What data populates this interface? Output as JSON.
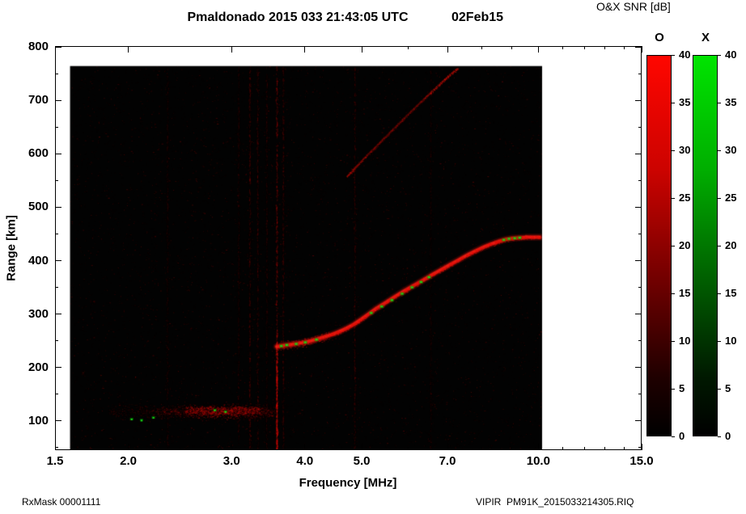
{
  "header": {
    "title": "Pmaldonado 2015 033 21:43:05 UTC",
    "date": "02Feb15",
    "snr_label": "O&X SNR [dB]"
  },
  "axes": {
    "x_label": "Frequency [MHz]",
    "y_label": "Range [km]"
  },
  "footer": {
    "left": "RxMask 00001111",
    "right": "VIPIR  PM91K_2015033214305.RIQ"
  },
  "chart_data": {
    "type": "heatmap",
    "title": "Pmaldonado 2015 033 21:43:05 UTC",
    "subtitle": "02Feb15",
    "xlabel": "Frequency [MHz]",
    "ylabel": "Range [km]",
    "colorbar_title": "O&X SNR [dB]",
    "x_scale": "log",
    "xlim": [
      1.5,
      15.0
    ],
    "ylim": [
      45,
      802
    ],
    "background_color": "#000000",
    "o_mode_color": "#ff0000",
    "x_mode_color": "#00e000",
    "x_ticks": {
      "values": [
        1.5,
        2.0,
        3.0,
        4.0,
        5.0,
        7.0,
        10.0,
        15.0
      ],
      "labels": [
        "1.5",
        "2.0",
        "3.0",
        "4.0",
        "5.0",
        "7.0",
        "10.0",
        "15.0"
      ],
      "minor": [
        6,
        8,
        9,
        11,
        12,
        13,
        14
      ]
    },
    "y_ticks": {
      "values": [
        100,
        200,
        300,
        400,
        500,
        600,
        700,
        800
      ],
      "labels": [
        "100",
        "200",
        "300",
        "400",
        "500",
        "600",
        "700",
        "800"
      ],
      "minor": [
        50,
        150,
        250,
        350,
        450,
        550,
        650,
        750
      ]
    },
    "data_extent": {
      "f_min": 1.59,
      "f_max": 10.15,
      "r_min": 45,
      "r_max": 765
    },
    "colorbars": [
      {
        "mode": "O",
        "label": "O",
        "min": 0,
        "max": 40,
        "tick_step": 5,
        "tick_labels": [
          "0",
          "5",
          "10",
          "15",
          "20",
          "25",
          "30",
          "35",
          "40"
        ],
        "gradient": [
          [
            "0%",
            "#ff0600"
          ],
          [
            "30%",
            "#cc0300"
          ],
          [
            "60%",
            "#6e0000"
          ],
          [
            "85%",
            "#1e0000"
          ],
          [
            "100%",
            "#000000"
          ]
        ]
      },
      {
        "mode": "X",
        "label": "X",
        "min": 0,
        "max": 40,
        "tick_step": 5,
        "tick_labels": [
          "0",
          "5",
          "10",
          "15",
          "20",
          "25",
          "30",
          "35",
          "40"
        ],
        "gradient": [
          [
            "0%",
            "#00e400"
          ],
          [
            "30%",
            "#00ae00"
          ],
          [
            "60%",
            "#005c00"
          ],
          [
            "85%",
            "#001800"
          ],
          [
            "100%",
            "#000000"
          ]
        ]
      }
    ],
    "o_trace_f_layer": [
      [
        3.58,
        239
      ],
      [
        3.68,
        241
      ],
      [
        3.8,
        243
      ],
      [
        3.95,
        246
      ],
      [
        4.1,
        250
      ],
      [
        4.25,
        255
      ],
      [
        4.4,
        260
      ],
      [
        4.55,
        266
      ],
      [
        4.7,
        273
      ],
      [
        4.85,
        281
      ],
      [
        5.0,
        291
      ],
      [
        5.15,
        301
      ],
      [
        5.3,
        311
      ],
      [
        5.5,
        322
      ],
      [
        5.7,
        333
      ],
      [
        5.9,
        343
      ],
      [
        6.1,
        352
      ],
      [
        6.3,
        361
      ],
      [
        6.55,
        372
      ],
      [
        6.8,
        382
      ],
      [
        7.05,
        392
      ],
      [
        7.3,
        401
      ],
      [
        7.55,
        410
      ],
      [
        7.8,
        418
      ],
      [
        8.05,
        425
      ],
      [
        8.3,
        431
      ],
      [
        8.55,
        436
      ],
      [
        8.8,
        440
      ],
      [
        9.05,
        442
      ],
      [
        9.3,
        443
      ],
      [
        9.6,
        444
      ],
      [
        10.05,
        444
      ]
    ],
    "x_mode_spots": [
      [
        3.64,
        240
      ],
      [
        3.72,
        242
      ],
      [
        3.86,
        244
      ],
      [
        4.0,
        247
      ],
      [
        4.18,
        252
      ],
      [
        5.18,
        302
      ],
      [
        5.4,
        314
      ],
      [
        5.62,
        326
      ],
      [
        5.85,
        338
      ],
      [
        6.08,
        350
      ],
      [
        6.3,
        360
      ],
      [
        6.5,
        369
      ],
      [
        8.72,
        439
      ],
      [
        8.9,
        441
      ],
      [
        9.1,
        442
      ],
      [
        9.28,
        443
      ]
    ],
    "second_hop": [
      [
        4.72,
        558
      ],
      [
        4.9,
        577
      ],
      [
        5.1,
        597
      ],
      [
        5.32,
        617
      ],
      [
        5.56,
        638
      ],
      [
        5.82,
        660
      ],
      [
        6.1,
        682
      ],
      [
        6.4,
        704
      ],
      [
        6.7,
        725
      ],
      [
        7.0,
        744
      ],
      [
        7.28,
        760
      ]
    ],
    "e_region": {
      "f_range": [
        1.85,
        3.55
      ],
      "r_center": 117,
      "r_spread": 13,
      "green_spots": [
        [
          2.02,
          104
        ],
        [
          2.1,
          102
        ],
        [
          2.2,
          107
        ],
        [
          2.8,
          121
        ],
        [
          2.92,
          118
        ]
      ]
    },
    "rfi_lines": [
      {
        "f": 2.33,
        "alpha": 0.05
      },
      {
        "f": 3.08,
        "alpha": 0.05
      },
      {
        "f": 3.22,
        "alpha": 0.1
      },
      {
        "f": 3.32,
        "alpha": 0.08
      },
      {
        "f": 3.44,
        "alpha": 0.06
      },
      {
        "f": 3.58,
        "alpha": 0.18
      },
      {
        "f": 3.67,
        "alpha": 0.09
      },
      {
        "f": 4.86,
        "alpha": 0.08
      },
      {
        "f": 6.55,
        "alpha": 0.04
      }
    ],
    "rfi_bright_segment": {
      "f": 3.58,
      "r_min": 45,
      "r_max": 250
    }
  }
}
